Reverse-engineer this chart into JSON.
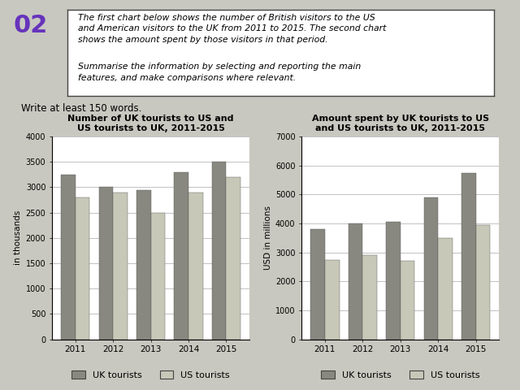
{
  "years": [
    "2011",
    "2012",
    "2013",
    "2014",
    "2015"
  ],
  "chart1_title": "Number of UK tourists to US and\nUS tourists to UK, 2011-2015",
  "chart1_ylabel": "in thousands",
  "chart1_ylim": [
    0,
    4000
  ],
  "chart1_yticks": [
    0,
    500,
    1000,
    1500,
    2000,
    2500,
    3000,
    3500,
    4000
  ],
  "chart1_uk": [
    3250,
    3000,
    2950,
    3300,
    3500
  ],
  "chart1_us": [
    2800,
    2900,
    2500,
    2900,
    3200
  ],
  "chart2_title": "Amount spent by UK tourists to US\nand US tourists to UK, 2011-2015",
  "chart2_ylabel": "USD in millions",
  "chart2_ylim": [
    0,
    7000
  ],
  "chart2_yticks": [
    0,
    1000,
    2000,
    3000,
    4000,
    5000,
    6000,
    7000
  ],
  "chart2_uk": [
    3800,
    4000,
    4050,
    4900,
    5750
  ],
  "chart2_us": [
    2750,
    2900,
    2700,
    3500,
    3950
  ],
  "color_uk": "#888880",
  "color_us": "#c8c8b8",
  "legend_uk": "UK tourists",
  "legend_us": "US tourists",
  "header_num": "02",
  "header_text1": "The first chart below shows the number of British visitors to the US\nand American visitors to the UK from 2011 to 2015. The second chart\nshows the amount spent by those visitors in that period.",
  "header_text2": "Summarise the information by selecting and reporting the main\nfeatures, and make comparisons where relevant.",
  "write_text": "Write at least 150 words.",
  "page_bg": "#c8c8c0"
}
